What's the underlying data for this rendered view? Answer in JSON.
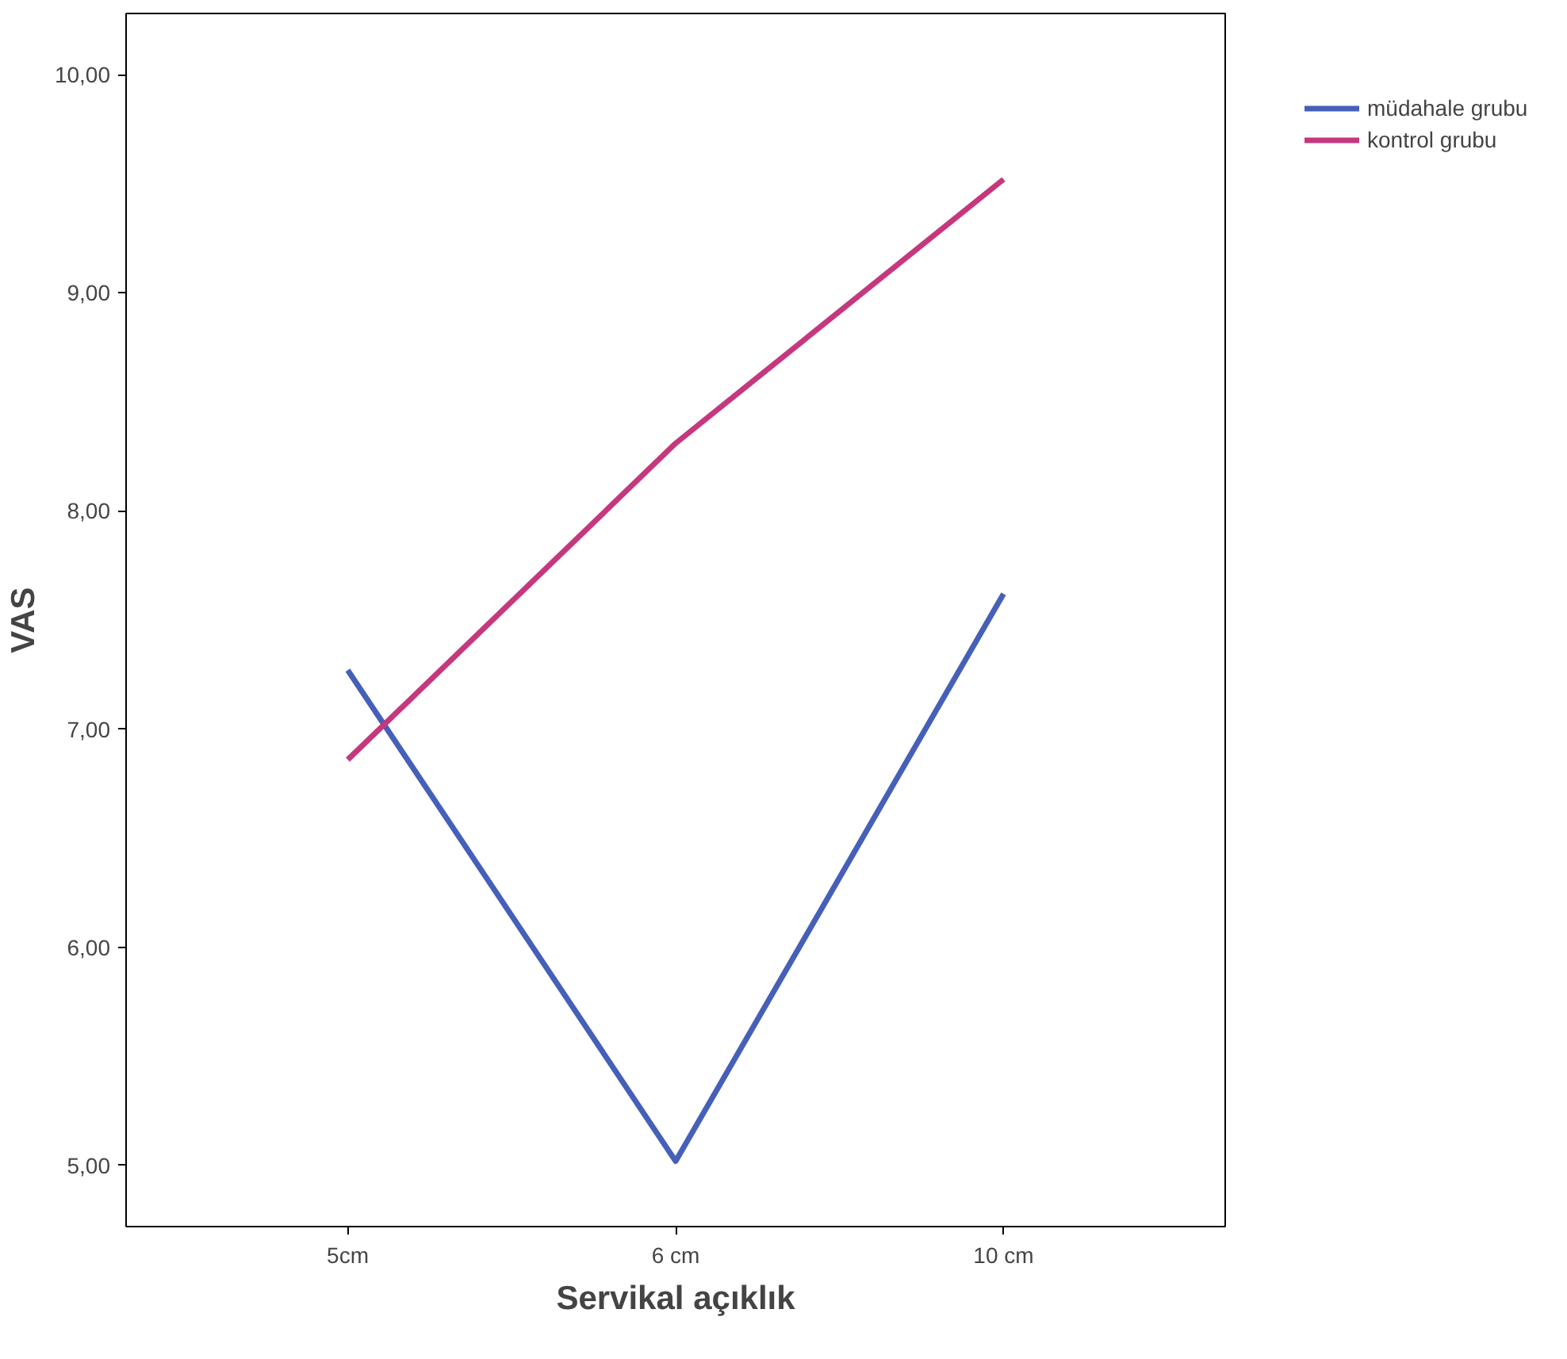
{
  "chart_data": {
    "type": "line",
    "xlabel": "Servikal açıklık",
    "ylabel": "VAS",
    "categories": [
      "5cm",
      "6 cm",
      "10 cm"
    ],
    "series": [
      {
        "name": "müdahale grubu",
        "color": "#4660b8",
        "values": [
          7.27,
          5.02,
          7.62
        ]
      },
      {
        "name": "kontrol grubu",
        "color": "#c5387e",
        "values": [
          6.86,
          8.31,
          9.52
        ]
      }
    ],
    "ylim": [
      4.72,
      10.28
    ],
    "yticks": [
      {
        "value": 5,
        "label": "5,00"
      },
      {
        "value": 6,
        "label": "6,00"
      },
      {
        "value": 7,
        "label": "7,00"
      },
      {
        "value": 8,
        "label": "8,00"
      },
      {
        "value": 9,
        "label": "9,00"
      },
      {
        "value": 10,
        "label": "10,00"
      }
    ],
    "grid": false,
    "legend": "top right",
    "marker": "none",
    "line_style": "solid"
  }
}
